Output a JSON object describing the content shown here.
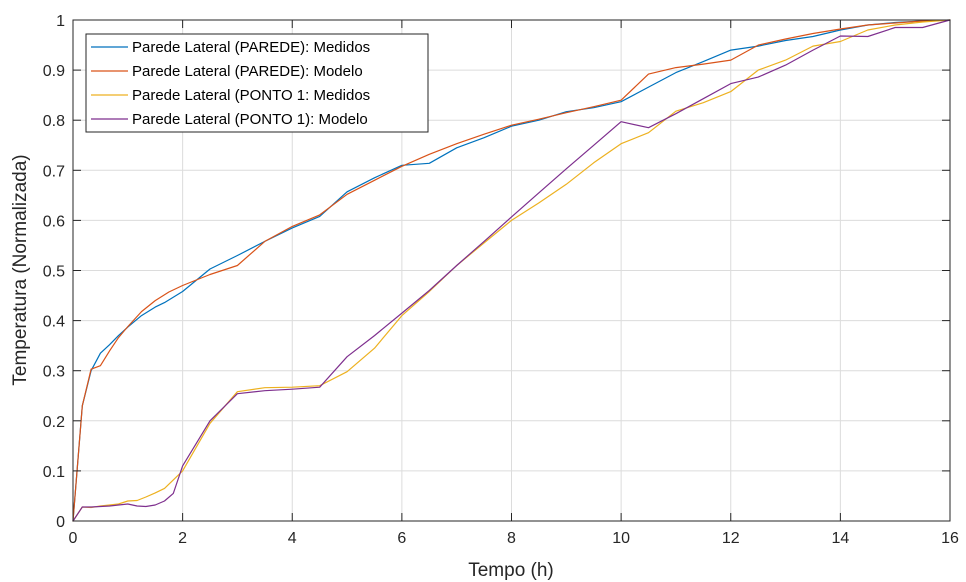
{
  "chart_data": {
    "type": "line",
    "title": "",
    "xlabel": "Tempo (h)",
    "ylabel": "Temperatura (Normalizada)",
    "xlim": [
      0,
      16
    ],
    "ylim": [
      0,
      1
    ],
    "xticks": [
      0,
      2,
      4,
      6,
      8,
      10,
      12,
      14,
      16
    ],
    "yticks": [
      0,
      0.1,
      0.2,
      0.3,
      0.4,
      0.5,
      0.6,
      0.7,
      0.8,
      0.9,
      1
    ],
    "xtick_labels": [
      "0",
      "2",
      "4",
      "6",
      "8",
      "10",
      "12",
      "14",
      "16"
    ],
    "ytick_labels": [
      "0",
      "0.1",
      "0.2",
      "0.3",
      "0.4",
      "0.5",
      "0.6",
      "0.7",
      "0.8",
      "0.9",
      "1"
    ],
    "grid": true,
    "legend_position": "top-left",
    "series": [
      {
        "name": "Parede Lateral (PAREDE): Medidos",
        "color": "#0072BD",
        "x": [
          0,
          0.17,
          0.33,
          0.5,
          0.67,
          0.83,
          1,
          1.25,
          1.5,
          1.67,
          2,
          2.5,
          3,
          3.5,
          4,
          4.5,
          5,
          5.5,
          6,
          6.5,
          7,
          7.5,
          8,
          8.5,
          9,
          9.5,
          10,
          10.5,
          11,
          11.5,
          12,
          12.5,
          13,
          13.5,
          14,
          14.5,
          15,
          15.5,
          16
        ],
        "y": [
          0,
          0.23,
          0.3,
          0.335,
          0.352,
          0.37,
          0.387,
          0.41,
          0.427,
          0.436,
          0.458,
          0.503,
          0.53,
          0.558,
          0.585,
          0.608,
          0.657,
          0.685,
          0.71,
          0.714,
          0.745,
          0.765,
          0.788,
          0.8,
          0.817,
          0.825,
          0.837,
          0.866,
          0.895,
          0.917,
          0.94,
          0.948,
          0.959,
          0.967,
          0.98,
          0.99,
          0.995,
          0.998,
          1.0
        ]
      },
      {
        "name": "Parede Lateral (PAREDE): Modelo",
        "color": "#D95319",
        "x": [
          0,
          0.17,
          0.33,
          0.5,
          0.67,
          0.83,
          1,
          1.25,
          1.5,
          1.75,
          2,
          2.5,
          3,
          3.5,
          4,
          4.5,
          5,
          5.5,
          6,
          6.5,
          7,
          7.5,
          8,
          8.5,
          9,
          9.5,
          10,
          10.5,
          11,
          11.5,
          12,
          12.5,
          13,
          13.5,
          14,
          14.5,
          15,
          15.5,
          16
        ],
        "y": [
          0,
          0.23,
          0.303,
          0.31,
          0.34,
          0.366,
          0.388,
          0.418,
          0.44,
          0.457,
          0.47,
          0.492,
          0.51,
          0.558,
          0.588,
          0.611,
          0.652,
          0.68,
          0.708,
          0.732,
          0.753,
          0.772,
          0.79,
          0.802,
          0.815,
          0.827,
          0.84,
          0.892,
          0.905,
          0.912,
          0.92,
          0.95,
          0.962,
          0.973,
          0.982,
          0.99,
          0.994,
          0.998,
          1.0
        ]
      },
      {
        "name": "Parede Lateral (PONTO 1: Medidos",
        "color": "#EDB120",
        "x": [
          0,
          0.17,
          0.33,
          0.5,
          0.67,
          0.83,
          1,
          1.17,
          1.33,
          1.5,
          1.67,
          2,
          2.5,
          3,
          3.5,
          4,
          4.5,
          5,
          5.5,
          6,
          6.5,
          7,
          7.5,
          8,
          8.5,
          9,
          9.5,
          10,
          10.5,
          11,
          11.5,
          12,
          12.5,
          13,
          13.5,
          14,
          14.5,
          15,
          15.5,
          16
        ],
        "y": [
          0,
          0.028,
          0.027,
          0.03,
          0.032,
          0.034,
          0.04,
          0.041,
          0.048,
          0.056,
          0.065,
          0.1,
          0.195,
          0.258,
          0.266,
          0.267,
          0.27,
          0.298,
          0.345,
          0.41,
          0.458,
          0.51,
          0.555,
          0.6,
          0.635,
          0.672,
          0.715,
          0.753,
          0.775,
          0.818,
          0.835,
          0.857,
          0.9,
          0.92,
          0.948,
          0.957,
          0.98,
          0.99,
          0.996,
          1.0
        ]
      },
      {
        "name": "Parede Lateral (PONTO 1): Modelo",
        "color": "#7E2F8E",
        "x": [
          0,
          0.17,
          0.33,
          0.5,
          0.67,
          0.83,
          1,
          1.17,
          1.33,
          1.5,
          1.67,
          1.83,
          2,
          2.5,
          3,
          3.5,
          4,
          4.5,
          5,
          5.5,
          6,
          6.5,
          7,
          7.5,
          8,
          8.5,
          9,
          9.5,
          10,
          10.5,
          11,
          11.5,
          12,
          12.5,
          13,
          13.5,
          14,
          14.5,
          15,
          15.5,
          16
        ],
        "y": [
          0,
          0.028,
          0.028,
          0.029,
          0.03,
          0.032,
          0.034,
          0.03,
          0.029,
          0.032,
          0.04,
          0.055,
          0.11,
          0.2,
          0.254,
          0.26,
          0.263,
          0.267,
          0.328,
          0.37,
          0.415,
          0.46,
          0.51,
          0.558,
          0.607,
          0.655,
          0.703,
          0.75,
          0.797,
          0.785,
          0.813,
          0.843,
          0.873,
          0.886,
          0.91,
          0.94,
          0.968,
          0.967,
          0.985,
          0.985,
          1.0
        ]
      }
    ]
  }
}
